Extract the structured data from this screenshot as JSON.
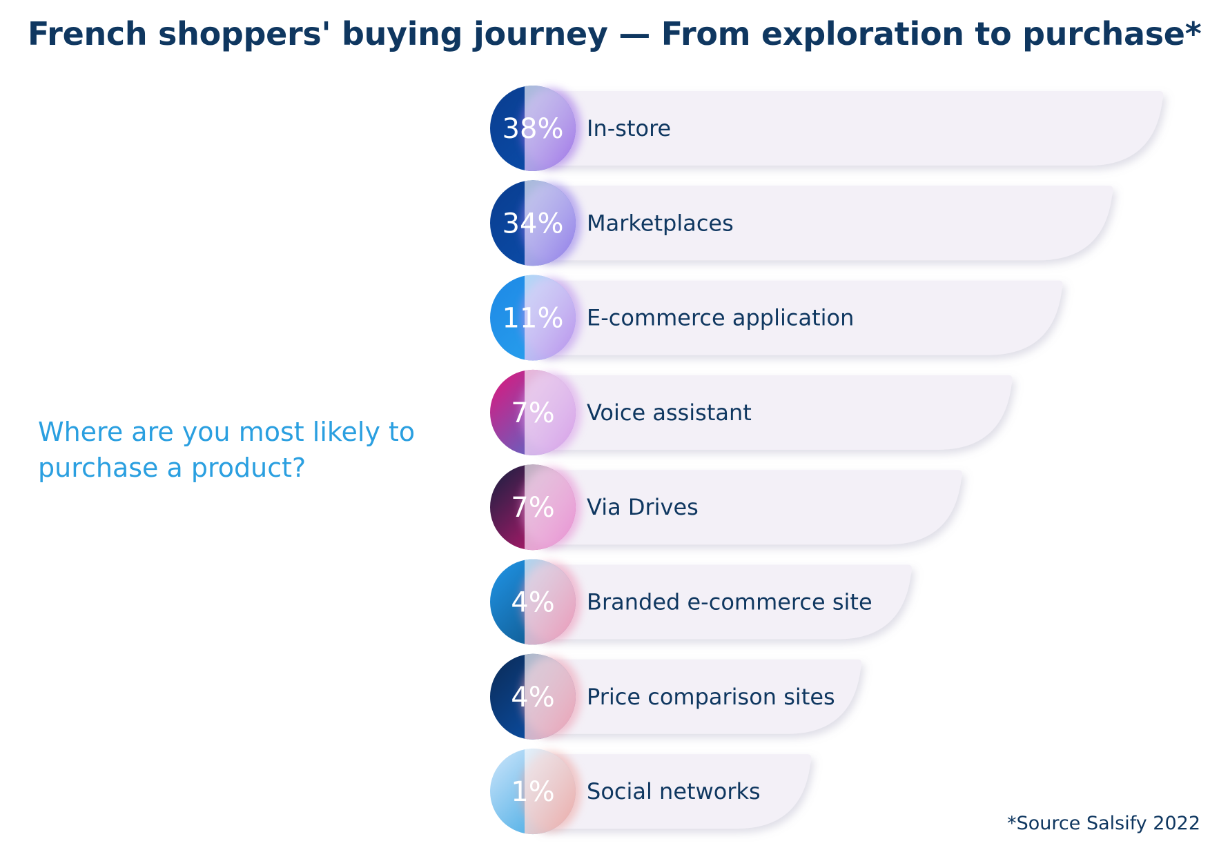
{
  "title": "French shoppers' buying journey — From exploration to purchase*",
  "question": "Where are you most likely to purchase a product?",
  "source": "*Source Salsify 2022",
  "chart_data": {
    "type": "bar",
    "orientation": "horizontal",
    "categories": [
      "In-store",
      "Marketplaces",
      "E-commerce application",
      "Voice assistant",
      "Via Drives",
      "Branded e-commerce site",
      "Price comparison sites",
      "Social networks"
    ],
    "values": [
      38,
      34,
      11,
      7,
      7,
      4,
      4,
      1
    ],
    "value_labels": [
      "38%",
      "34%",
      "11%",
      "7%",
      "7%",
      "4%",
      "4%",
      "1%"
    ],
    "unit": "%",
    "colors": {
      "circles": [
        [
          "#0a3d8f",
          "#0b4fae"
        ],
        [
          "#0a3d8f",
          "#0b4fae"
        ],
        [
          "#1e88e5",
          "#2aa5ef"
        ],
        [
          "#e0157a",
          "#3d7bd8"
        ],
        [
          "#14203f",
          "#d81876"
        ],
        [
          "#2196e8",
          "#0b4a7a"
        ],
        [
          "#0b2a55",
          "#0b57b8"
        ],
        [
          "#cfe6fb",
          "#2a9fe0"
        ]
      ],
      "accents": [
        "#9b6be6",
        "#8a73e8",
        "#b488ea",
        "#d798e6",
        "#e58ad0",
        "#ec92b4",
        "#ec9aae",
        "#eea4a0"
      ],
      "bar": "#f3f0f7",
      "text": "#0f3760",
      "question": "#2a9fe0"
    }
  }
}
